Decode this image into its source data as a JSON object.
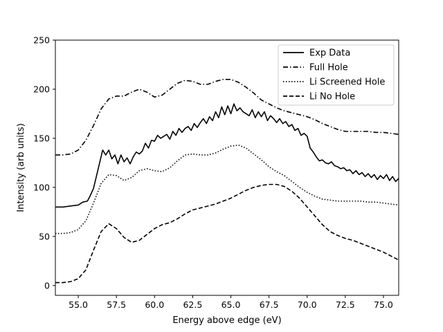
{
  "chart_data": {
    "type": "line",
    "title": "",
    "xlabel": "Energy above edge (eV)",
    "ylabel": "Intensity (arb units)",
    "xlim": [
      53.5,
      76.0
    ],
    "ylim": [
      -10,
      250
    ],
    "x_ticks": [
      55.0,
      57.5,
      60.0,
      62.5,
      65.0,
      67.5,
      70.0,
      72.5,
      75.0
    ],
    "x_tick_labels": [
      "55.0",
      "57.5",
      "60.0",
      "62.5",
      "65.0",
      "67.5",
      "70.0",
      "72.5",
      "75.0"
    ],
    "y_ticks": [
      0,
      50,
      100,
      150,
      200,
      250
    ],
    "y_tick_labels": [
      "0",
      "50",
      "100",
      "150",
      "200",
      "250"
    ],
    "grid": false,
    "legend_position": "top-right",
    "series": [
      {
        "name": "Exp Data",
        "style": "solid",
        "color": "#000000",
        "x": [
          53.5,
          54.0,
          54.5,
          55.0,
          55.3,
          55.6,
          55.8,
          56.0,
          56.2,
          56.4,
          56.6,
          56.8,
          57.0,
          57.2,
          57.4,
          57.6,
          57.8,
          58.0,
          58.2,
          58.4,
          58.6,
          58.8,
          59.0,
          59.2,
          59.4,
          59.6,
          59.8,
          60.0,
          60.2,
          60.4,
          60.6,
          60.8,
          61.0,
          61.2,
          61.4,
          61.6,
          61.8,
          62.0,
          62.2,
          62.4,
          62.6,
          62.8,
          63.0,
          63.2,
          63.4,
          63.6,
          63.8,
          64.0,
          64.2,
          64.4,
          64.6,
          64.8,
          65.0,
          65.2,
          65.4,
          65.6,
          65.8,
          66.0,
          66.2,
          66.4,
          66.6,
          66.8,
          67.0,
          67.2,
          67.4,
          67.6,
          67.8,
          68.0,
          68.2,
          68.4,
          68.6,
          68.8,
          69.0,
          69.2,
          69.4,
          69.6,
          69.8,
          70.0,
          70.2,
          70.4,
          70.6,
          70.8,
          71.0,
          71.2,
          71.4,
          71.6,
          71.8,
          72.0,
          72.2,
          72.4,
          72.6,
          72.8,
          73.0,
          73.2,
          73.4,
          73.6,
          73.8,
          74.0,
          74.2,
          74.4,
          74.6,
          74.8,
          75.0,
          75.2,
          75.4,
          75.6,
          75.8,
          76.0
        ],
        "y": [
          80,
          80,
          81,
          82,
          85,
          86,
          92,
          99,
          112,
          125,
          138,
          133,
          138,
          129,
          133,
          124,
          133,
          126,
          130,
          124,
          131,
          136,
          134,
          137,
          145,
          140,
          148,
          147,
          153,
          150,
          152,
          154,
          149,
          157,
          153,
          160,
          156,
          160,
          162,
          158,
          165,
          161,
          166,
          170,
          165,
          172,
          168,
          177,
          171,
          182,
          174,
          183,
          175,
          185,
          178,
          181,
          177,
          175,
          173,
          179,
          171,
          177,
          172,
          177,
          168,
          173,
          170,
          166,
          170,
          165,
          167,
          162,
          164,
          158,
          160,
          153,
          155,
          152,
          140,
          136,
          131,
          127,
          128,
          125,
          124,
          126,
          122,
          121,
          119,
          120,
          117,
          118,
          114,
          117,
          113,
          115,
          111,
          114,
          110,
          113,
          108,
          112,
          109,
          113,
          107,
          111,
          106,
          109
        ]
      },
      {
        "name": "Full Hole",
        "style": "dashdot",
        "color": "#000000",
        "x": [
          53.5,
          54.0,
          54.5,
          55.0,
          55.5,
          56.0,
          56.5,
          57.0,
          57.5,
          58.0,
          58.5,
          59.0,
          59.5,
          60.0,
          60.5,
          61.0,
          61.5,
          62.0,
          62.5,
          63.0,
          63.5,
          64.0,
          64.5,
          65.0,
          65.5,
          66.0,
          66.5,
          67.0,
          67.5,
          68.0,
          68.5,
          69.0,
          69.5,
          70.0,
          70.5,
          71.0,
          71.5,
          72.0,
          72.5,
          73.0,
          73.5,
          74.0,
          74.5,
          75.0,
          75.5,
          76.0
        ],
        "y": [
          133,
          133,
          134,
          138,
          148,
          163,
          180,
          190,
          193,
          193,
          197,
          200,
          197,
          192,
          194,
          200,
          206,
          209,
          208,
          205,
          205,
          208,
          210,
          210,
          207,
          202,
          196,
          189,
          185,
          181,
          178,
          176,
          174,
          172,
          169,
          165,
          162,
          159,
          157,
          157,
          157,
          157,
          156,
          156,
          155,
          154
        ]
      },
      {
        "name": "Li Screened Hole",
        "style": "dotted",
        "color": "#000000",
        "x": [
          53.5,
          54.0,
          54.5,
          55.0,
          55.5,
          56.0,
          56.5,
          57.0,
          57.5,
          58.0,
          58.5,
          59.0,
          59.5,
          60.0,
          60.5,
          61.0,
          61.5,
          62.0,
          62.5,
          63.0,
          63.5,
          64.0,
          64.5,
          65.0,
          65.5,
          66.0,
          66.5,
          67.0,
          67.5,
          68.0,
          68.5,
          69.0,
          69.5,
          70.0,
          70.5,
          71.0,
          71.5,
          72.0,
          72.5,
          73.0,
          73.5,
          74.0,
          74.5,
          75.0,
          75.5,
          76.0
        ],
        "y": [
          53,
          53,
          54,
          57,
          66,
          84,
          104,
          113,
          112,
          107,
          110,
          117,
          119,
          117,
          116,
          120,
          127,
          133,
          134,
          133,
          133,
          135,
          139,
          142,
          143,
          140,
          134,
          128,
          121,
          116,
          112,
          106,
          100,
          95,
          91,
          88,
          87,
          86,
          86,
          86,
          86,
          85,
          85,
          84,
          83,
          82
        ]
      },
      {
        "name": "Li No Hole",
        "style": "dashed",
        "color": "#000000",
        "x": [
          53.5,
          54.0,
          54.5,
          55.0,
          55.5,
          56.0,
          56.5,
          57.0,
          57.5,
          58.0,
          58.5,
          59.0,
          59.5,
          60.0,
          60.5,
          61.0,
          61.5,
          62.0,
          62.5,
          63.0,
          63.5,
          64.0,
          64.5,
          65.0,
          65.5,
          66.0,
          66.5,
          67.0,
          67.5,
          68.0,
          68.5,
          69.0,
          69.5,
          70.0,
          70.5,
          71.0,
          71.5,
          72.0,
          72.5,
          73.0,
          73.5,
          74.0,
          74.5,
          75.0,
          75.5,
          76.0
        ],
        "y": [
          3,
          3,
          4,
          7,
          16,
          36,
          55,
          63,
          58,
          49,
          44,
          46,
          52,
          58,
          62,
          64,
          68,
          73,
          77,
          79,
          81,
          83,
          86,
          89,
          93,
          97,
          100,
          102,
          103,
          103,
          101,
          96,
          89,
          80,
          71,
          62,
          55,
          51,
          48,
          46,
          43,
          40,
          37,
          34,
          30,
          26
        ]
      }
    ]
  }
}
